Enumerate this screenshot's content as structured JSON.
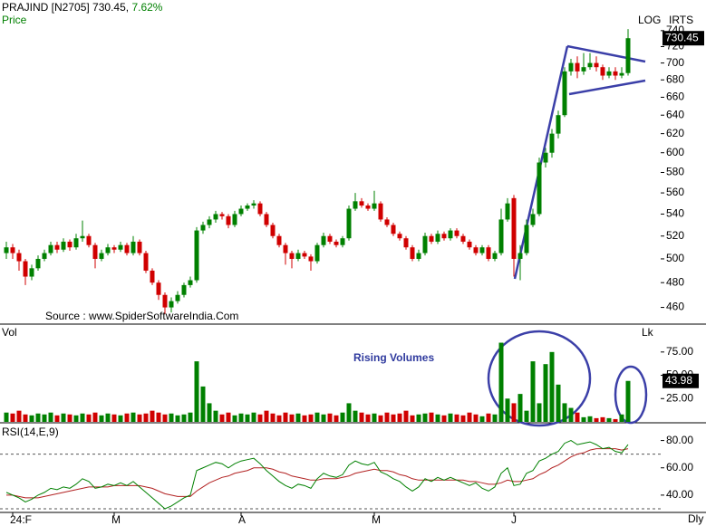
{
  "header": {
    "symbol": "PRAJIND [N2705]",
    "price": "730.45,",
    "change": "7.62%",
    "price_label": "Price",
    "scale_label": "LOG",
    "mode_label": "IRTS",
    "period": "Dly"
  },
  "chart_data": [
    {
      "type": "candlestick",
      "source": "Source : www.SpiderSoftwareIndia.Com",
      "log_scale": true,
      "up_color": "#008000",
      "down_color": "#d00000",
      "ylim": [
        447,
        780
      ],
      "yticks": [
        460,
        480,
        500,
        520,
        540,
        560,
        580,
        600,
        620,
        640,
        660,
        680,
        700,
        720,
        740
      ],
      "open": [
        505,
        510,
        505,
        498,
        485,
        492,
        500,
        505,
        512,
        508,
        515,
        510,
        518,
        520,
        512,
        500,
        505,
        510,
        508,
        512,
        505,
        515,
        505,
        490,
        480,
        470,
        460,
        465,
        470,
        478,
        482,
        525,
        530,
        535,
        540,
        538,
        530,
        540,
        545,
        548,
        550,
        540,
        530,
        520,
        512,
        505,
        500,
        505,
        502,
        498,
        512,
        520,
        515,
        512,
        518,
        545,
        552,
        548,
        545,
        550,
        535,
        530,
        522,
        518,
        510,
        500,
        505,
        520,
        515,
        522,
        518,
        525,
        520,
        515,
        510,
        505,
        510,
        500,
        505,
        535,
        555,
        500,
        505,
        530,
        540,
        590,
        600,
        620,
        640,
        690,
        700,
        690,
        695,
        700,
        695,
        685,
        690,
        685,
        688
      ],
      "high": [
        515,
        513,
        508,
        500,
        495,
        503,
        508,
        515,
        515,
        518,
        517,
        522,
        534,
        522,
        514,
        508,
        513,
        512,
        515,
        514,
        520,
        517,
        507,
        492,
        482,
        472,
        468,
        473,
        480,
        485,
        528,
        533,
        538,
        543,
        542,
        540,
        543,
        548,
        550,
        553,
        552,
        542,
        532,
        522,
        514,
        507,
        508,
        507,
        504,
        514,
        523,
        522,
        517,
        520,
        548,
        560,
        555,
        550,
        562,
        552,
        537,
        532,
        524,
        520,
        512,
        508,
        523,
        522,
        525,
        524,
        527,
        527,
        522,
        517,
        512,
        512,
        512,
        507,
        545,
        555,
        558,
        512,
        535,
        545,
        595,
        605,
        625,
        645,
        695,
        705,
        708,
        712,
        712,
        708,
        698,
        695,
        695,
        695,
        742
      ],
      "low": [
        500,
        500,
        490,
        478,
        482,
        490,
        498,
        503,
        505,
        506,
        507,
        508,
        515,
        510,
        492,
        498,
        503,
        505,
        506,
        503,
        503,
        503,
        488,
        478,
        466,
        455,
        456,
        463,
        468,
        476,
        480,
        522,
        527,
        532,
        535,
        527,
        528,
        538,
        543,
        545,
        538,
        528,
        518,
        510,
        495,
        492,
        498,
        500,
        490,
        496,
        510,
        513,
        510,
        510,
        516,
        543,
        546,
        543,
        543,
        533,
        528,
        520,
        516,
        508,
        498,
        498,
        503,
        513,
        513,
        516,
        516,
        518,
        513,
        508,
        503,
        503,
        498,
        498,
        503,
        533,
        485,
        482,
        503,
        528,
        538,
        585,
        595,
        615,
        638,
        685,
        682,
        686,
        692,
        690,
        680,
        682,
        680,
        682,
        685
      ],
      "close": [
        510,
        505,
        498,
        485,
        492,
        500,
        505,
        512,
        508,
        515,
        510,
        518,
        520,
        512,
        500,
        505,
        510,
        508,
        512,
        505,
        515,
        505,
        490,
        480,
        470,
        460,
        465,
        470,
        478,
        482,
        525,
        530,
        535,
        540,
        538,
        530,
        540,
        545,
        548,
        550,
        540,
        530,
        520,
        512,
        505,
        500,
        505,
        502,
        498,
        512,
        520,
        515,
        512,
        518,
        545,
        552,
        548,
        545,
        550,
        535,
        530,
        522,
        518,
        510,
        500,
        505,
        520,
        515,
        522,
        518,
        525,
        520,
        515,
        510,
        505,
        510,
        500,
        505,
        535,
        550,
        500,
        505,
        530,
        540,
        590,
        600,
        620,
        640,
        690,
        700,
        690,
        695,
        700,
        695,
        685,
        690,
        685,
        688,
        730.45
      ]
    },
    {
      "type": "bar",
      "title": "Vol",
      "unit": "Lk",
      "annotation": "Rising Volumes",
      "ylim": [
        0,
        103
      ],
      "yticks": [
        {
          "value": 25,
          "label": "25.00"
        },
        {
          "value": 50,
          "label": "50.00"
        },
        {
          "value": 75,
          "label": "75.00"
        }
      ],
      "values": [
        10,
        9,
        12,
        8,
        7,
        9,
        8,
        10,
        7,
        9,
        8,
        7,
        9,
        8,
        10,
        7,
        9,
        8,
        7,
        9,
        10,
        8,
        9,
        12,
        10,
        8,
        9,
        7,
        8,
        10,
        65,
        38,
        20,
        12,
        8,
        10,
        7,
        9,
        8,
        10,
        8,
        12,
        9,
        7,
        10,
        8,
        9,
        7,
        8,
        10,
        8,
        9,
        7,
        10,
        20,
        12,
        10,
        8,
        9,
        7,
        10,
        8,
        9,
        12,
        7,
        8,
        9,
        10,
        8,
        7,
        9,
        8,
        7,
        10,
        8,
        6,
        9,
        8,
        85,
        25,
        20,
        30,
        12,
        65,
        20,
        62,
        75,
        40,
        20,
        15,
        10,
        5,
        6,
        4,
        5,
        4,
        3,
        8,
        43.98
      ]
    },
    {
      "type": "line",
      "title": "RSI(14,E,9)",
      "ylim": [
        26,
        91
      ],
      "yticks": [
        {
          "value": 40,
          "label": "40.00"
        },
        {
          "value": 60,
          "label": "60.00"
        },
        {
          "value": 80,
          "label": "80.00"
        }
      ],
      "reference_lines": [
        70,
        30
      ],
      "xticks": [
        {
          "value": 1,
          "label": "24:F"
        },
        {
          "value": 17,
          "label": "M"
        },
        {
          "value": 37,
          "label": "A"
        },
        {
          "value": 58,
          "label": "M"
        },
        {
          "value": 80,
          "label": "J"
        }
      ],
      "series": [
        {
          "color": "#008000",
          "values": [
            42,
            40,
            38,
            35,
            37,
            40,
            42,
            45,
            44,
            46,
            45,
            48,
            52,
            50,
            45,
            46,
            48,
            47,
            49,
            47,
            50,
            46,
            42,
            38,
            34,
            30,
            32,
            35,
            38,
            40,
            58,
            60,
            62,
            64,
            63,
            60,
            63,
            65,
            66,
            67,
            63,
            58,
            54,
            50,
            47,
            45,
            48,
            47,
            45,
            52,
            56,
            54,
            53,
            55,
            62,
            65,
            63,
            62,
            64,
            57,
            55,
            52,
            50,
            46,
            43,
            46,
            52,
            50,
            53,
            51,
            53,
            51,
            49,
            47,
            49,
            45,
            43,
            46,
            56,
            60,
            47,
            48,
            56,
            58,
            65,
            67,
            70,
            72,
            78,
            80,
            77,
            78,
            79,
            77,
            74,
            75,
            72,
            71,
            77
          ]
        },
        {
          "color": "#b22222",
          "values": [
            40,
            40,
            39,
            38,
            38,
            38,
            39,
            40,
            41,
            42,
            43,
            44,
            45,
            46,
            46,
            46,
            46,
            47,
            47,
            47,
            47,
            47,
            46,
            45,
            43,
            41,
            40,
            39,
            39,
            39,
            43,
            46,
            49,
            51,
            53,
            54,
            56,
            57,
            58,
            60,
            60,
            60,
            59,
            57,
            56,
            54,
            53,
            52,
            51,
            51,
            52,
            52,
            52,
            53,
            54,
            56,
            57,
            58,
            59,
            58,
            58,
            57,
            55,
            54,
            52,
            51,
            51,
            51,
            51,
            51,
            51,
            51,
            51,
            50,
            50,
            49,
            48,
            48,
            49,
            51,
            50,
            50,
            51,
            52,
            55,
            57,
            60,
            62,
            65,
            68,
            70,
            71,
            73,
            74,
            74,
            74,
            74,
            73,
            74
          ]
        }
      ]
    }
  ]
}
